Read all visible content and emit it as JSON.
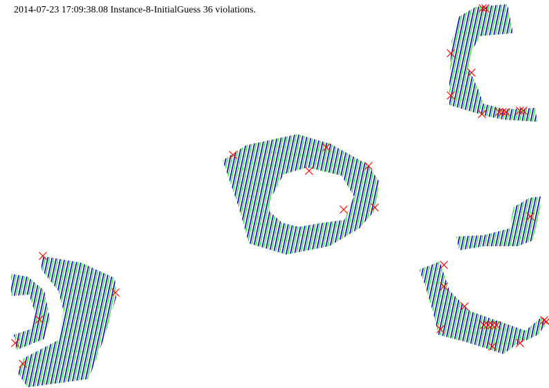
{
  "header": {
    "text": "2014-07-23 17:09:38.08 Instance-8-InitialGuess 36 violations."
  },
  "colors": {
    "background": "#ffffff",
    "stroke_primary": "#0000aa",
    "stroke_secondary": "#00dd00",
    "violation_marker": "#ff0000"
  },
  "legend_semantics": {
    "violation_marker_icon": "red-x-icon"
  }
}
